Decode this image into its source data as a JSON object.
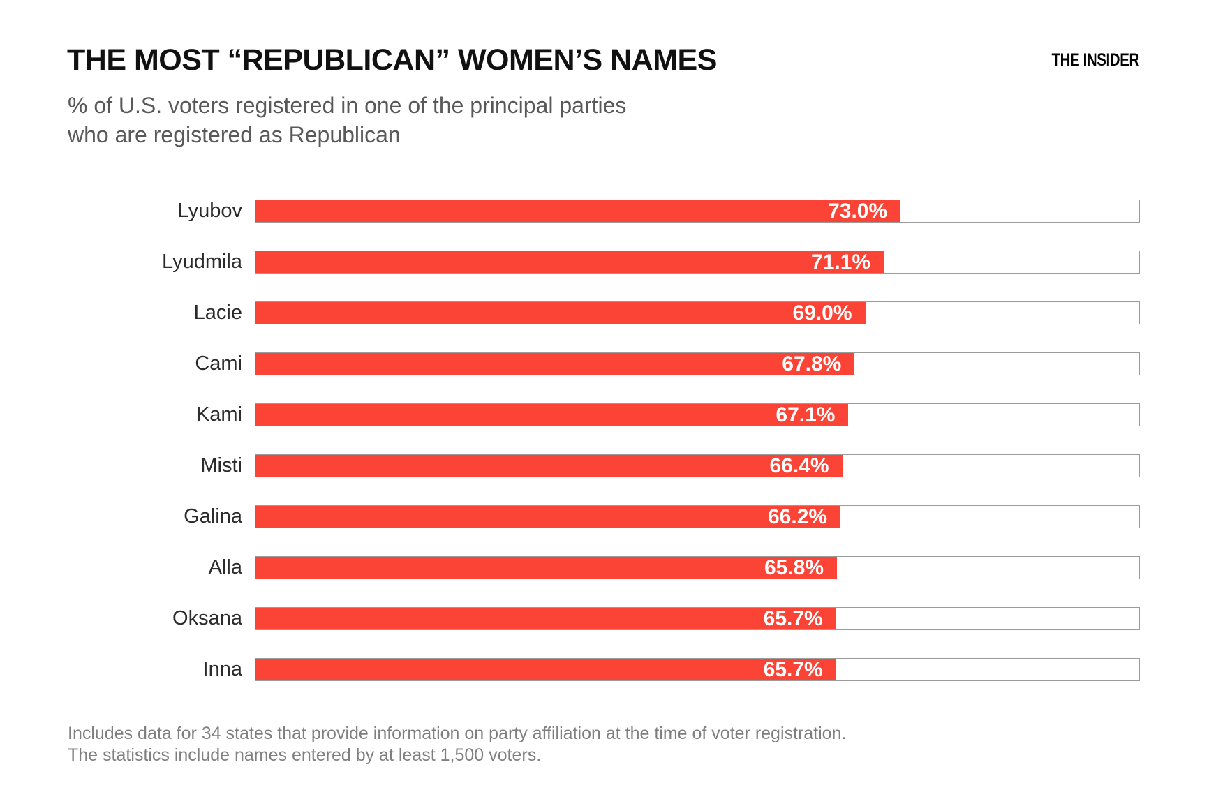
{
  "header": {
    "title": "THE MOST “REPUBLICAN” WOMEN’S NAMES",
    "logo": "THE INSIDER",
    "subtitle_line1": "% of U.S. voters registered in one of the principal parties",
    "subtitle_line2": "who are registered as Republican"
  },
  "chart_data": {
    "type": "bar",
    "orientation": "horizontal",
    "title": "THE MOST “REPUBLICAN” WOMEN’S NAMES",
    "subtitle": "% of U.S. voters registered in one of the principal parties who are registered as Republican",
    "categories": [
      "Lyubov",
      "Lyudmila",
      "Lacie",
      "Cami",
      "Kami",
      "Misti",
      "Galina",
      "Alla",
      "Oksana",
      "Inna"
    ],
    "values": [
      73.0,
      71.1,
      69.0,
      67.8,
      67.1,
      66.4,
      66.2,
      65.8,
      65.7,
      65.7
    ],
    "value_labels": [
      "73.0%",
      "71.1%",
      "69.0%",
      "67.8%",
      "67.1%",
      "66.4%",
      "66.2%",
      "65.8%",
      "65.7%",
      "65.7%"
    ],
    "xlim": [
      0,
      100
    ],
    "grid": false,
    "legend": false,
    "bar_color": "#fb4336",
    "track_border_color": "#9b9b9b",
    "value_label_color": "#ffffff"
  },
  "footer": {
    "line1": "Includes data for 34 states that provide information on party affiliation at the time of voter registration.",
    "line2": "The statistics include names entered by at least 1,500 voters."
  }
}
